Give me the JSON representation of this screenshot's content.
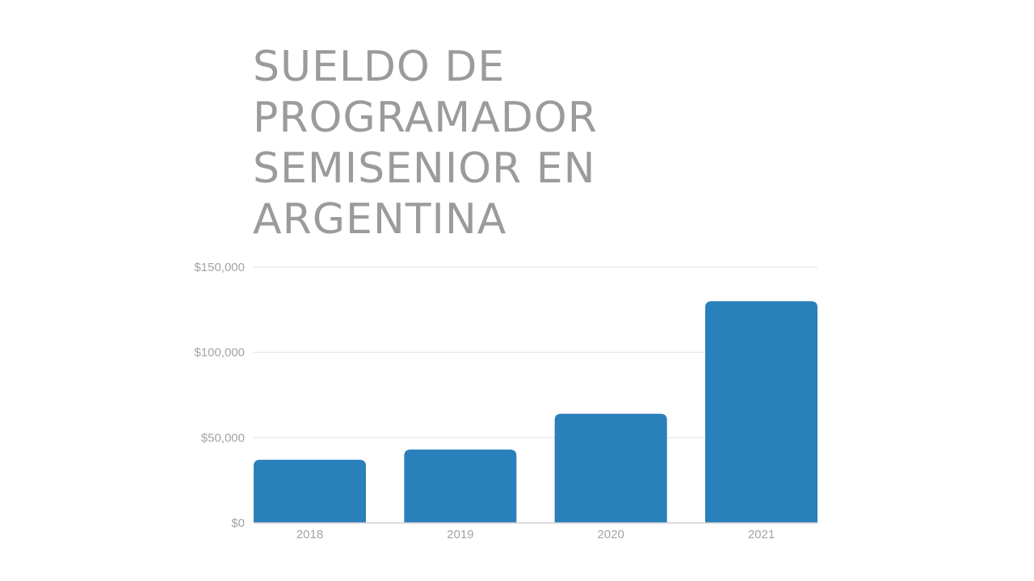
{
  "title_lines": [
    "SUELDO DE",
    "PROGRAMADOR",
    "SEMISENIOR EN",
    "ARGENTINA"
  ],
  "chart_data": {
    "type": "bar",
    "title": "SUELDO DE PROGRAMADOR SEMISENIOR EN ARGENTINA",
    "categories": [
      "2018",
      "2019",
      "2020",
      "2021"
    ],
    "values": [
      37000,
      43000,
      64000,
      130000
    ],
    "ylim": [
      0,
      150000
    ],
    "yticks": [
      0,
      50000,
      100000,
      150000
    ],
    "ytick_labels": [
      "$0",
      "$50,000",
      "$100,000",
      "$150,000"
    ],
    "xlabel": "",
    "ylabel": "",
    "grid": true,
    "bar_color": "#2980ba",
    "grid_color": "#e3e3e3",
    "axis_color": "#d0d0d0",
    "label_color": "#a3a3a3"
  }
}
